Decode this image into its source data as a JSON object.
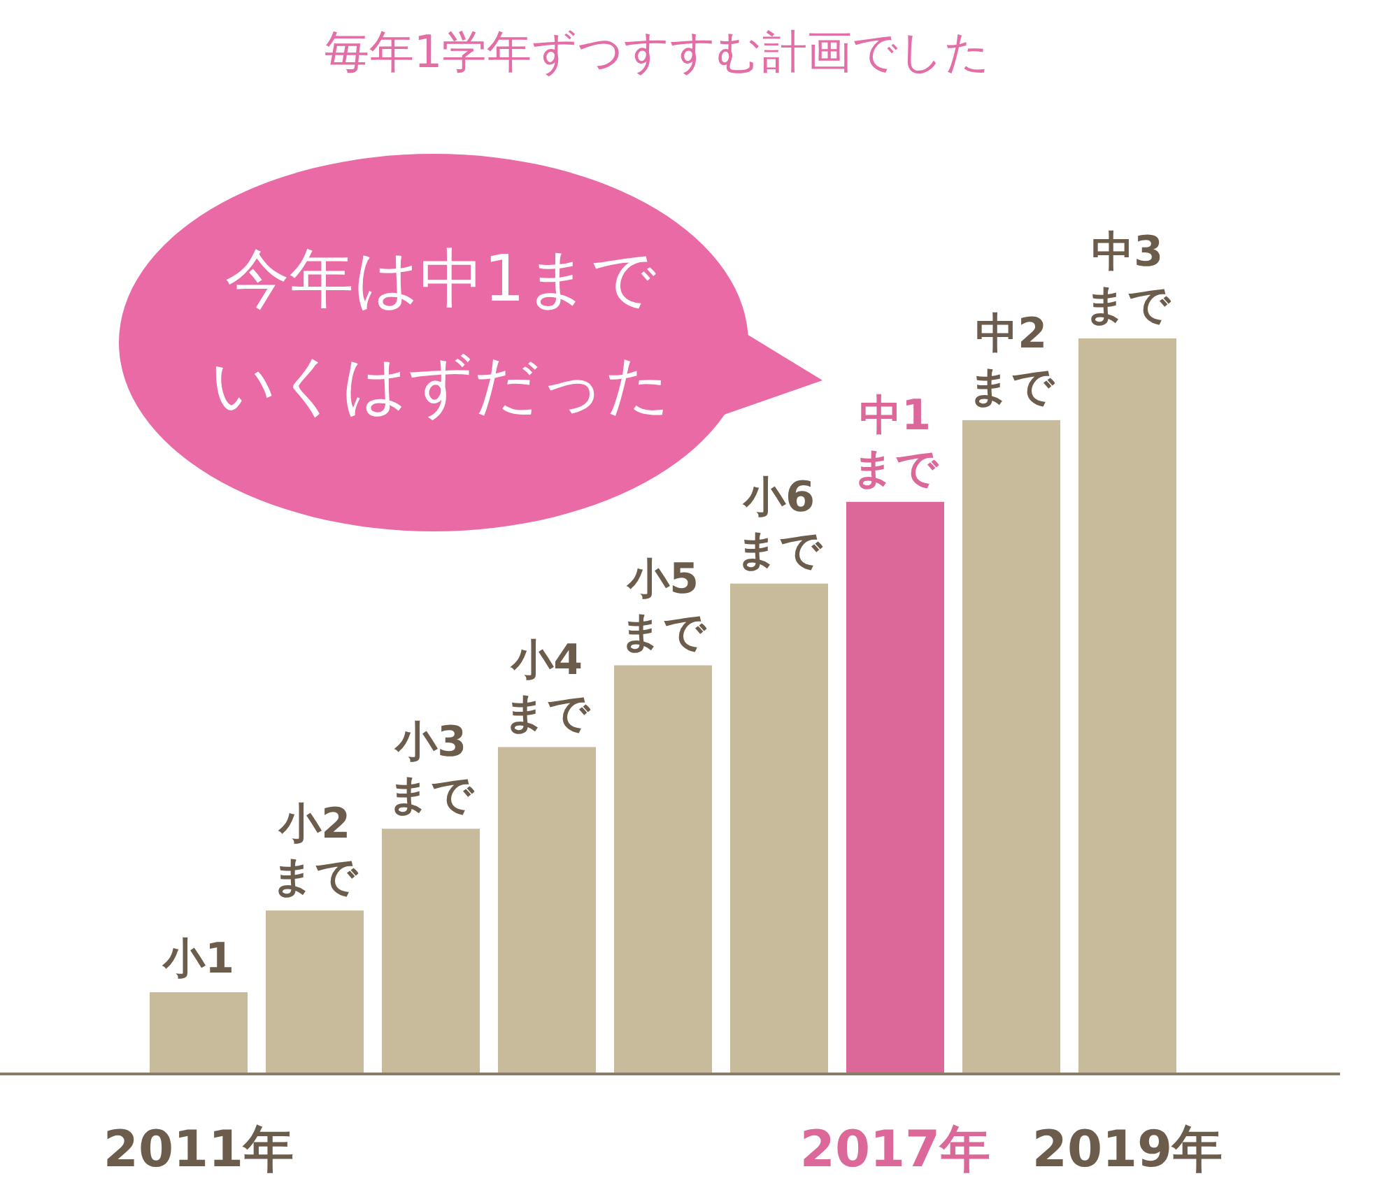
{
  "chart_data": {
    "type": "bar",
    "title": "毎年1学年ずつすすむ計画でした",
    "ylim": [
      0,
      9
    ],
    "categories": [
      "2011年",
      null,
      null,
      null,
      null,
      null,
      "2017年",
      null,
      "2019年"
    ],
    "values": [
      1,
      2,
      3,
      4,
      5,
      6,
      7,
      8,
      9
    ],
    "colors": [
      "#c8bb9b",
      "#c8bb9b",
      "#c8bb9b",
      "#c8bb9b",
      "#c8bb9b",
      "#c8bb9b",
      "#dc6899",
      "#c8bb9b",
      "#c8bb9b"
    ],
    "value_labels": [
      "小1",
      "小2\nまで",
      "小3\nまで",
      "小4\nまで",
      "小5\nまで",
      "小6\nまで",
      "中1\nまで",
      "中2\nまで",
      "中3\nまで"
    ],
    "annotations": [
      "今年は中1までいくはずだった"
    ]
  }
}
